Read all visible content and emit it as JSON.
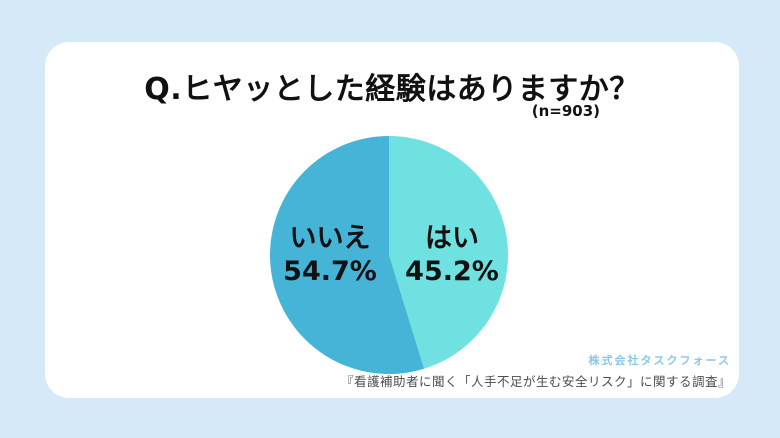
{
  "page": {
    "background_color": "#d6e9f8",
    "card_color": "#ffffff"
  },
  "header": {
    "title": "Q.ヒヤッとした経験はありますか？",
    "sample_size": "(n=903)"
  },
  "chart_data": {
    "type": "pie",
    "title": "Q.ヒヤッとした経験はありますか？",
    "sample_size_label": "(n=903)",
    "n": 903,
    "start_angle": "top",
    "direction": "clockwise",
    "legend_position": "inside",
    "slices": [
      {
        "key": "yes",
        "label": "はい",
        "value": 45.2,
        "display_value": "45.2%",
        "color": "#6fe1e1"
      },
      {
        "key": "no",
        "label": "いいえ",
        "value": 54.7,
        "display_value": "54.7%",
        "color": "#46b4d6"
      }
    ]
  },
  "footer": {
    "company": "株式会社タスクフォース",
    "company_color": "#8cc7e8",
    "survey": "『看護補助者に聞く「人手不足が生む安全リスク」に関する調査』",
    "survey_color": "#4d4d4d"
  }
}
